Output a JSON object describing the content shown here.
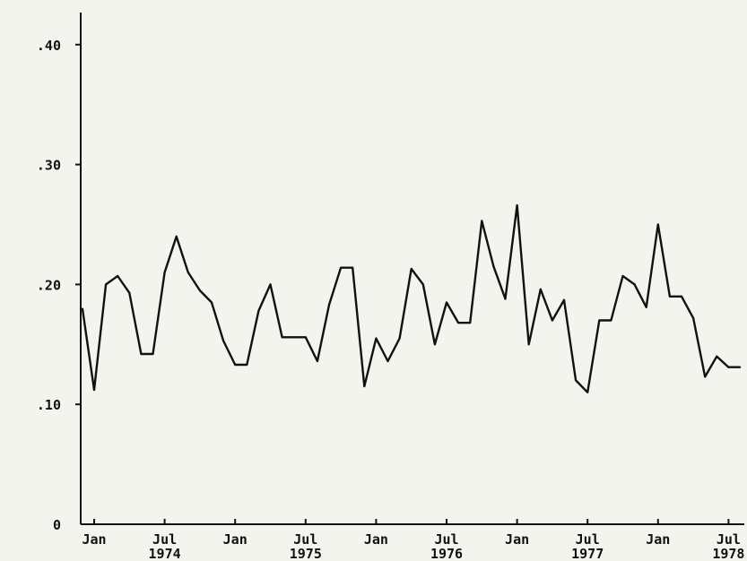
{
  "chart_data": {
    "type": "line",
    "title": "",
    "xlabel": "",
    "ylabel": "",
    "ylim": [
      0,
      0.43
    ],
    "grid": false,
    "legend": "none",
    "y_ticks": [
      {
        "value": 0,
        "label": "0"
      },
      {
        "value": 0.1,
        "label": ".10"
      },
      {
        "value": 0.2,
        "label": ".20"
      },
      {
        "value": 0.3,
        "label": ".30"
      },
      {
        "value": 0.4,
        "label": ".40"
      }
    ],
    "x_ticks": [
      {
        "date": "1974-01",
        "month": "Jan",
        "year": ""
      },
      {
        "date": "1974-07",
        "month": "Jul",
        "year": "1974"
      },
      {
        "date": "1975-01",
        "month": "Jan",
        "year": ""
      },
      {
        "date": "1975-07",
        "month": "Jul",
        "year": "1975"
      },
      {
        "date": "1976-01",
        "month": "Jan",
        "year": ""
      },
      {
        "date": "1976-07",
        "month": "Jul",
        "year": "1976"
      },
      {
        "date": "1977-01",
        "month": "Jan",
        "year": ""
      },
      {
        "date": "1977-07",
        "month": "Jul",
        "year": "1977"
      },
      {
        "date": "1978-01",
        "month": "Jan",
        "year": ""
      },
      {
        "date": "1978-07",
        "month": "Jul",
        "year": "1978"
      }
    ],
    "series": [
      {
        "x": [
          "1973-12",
          "1974-01",
          "1974-02",
          "1974-03",
          "1974-04",
          "1974-05",
          "1974-06",
          "1974-07",
          "1974-08",
          "1974-09",
          "1974-10",
          "1974-11",
          "1974-12",
          "1975-01",
          "1975-02",
          "1975-03",
          "1975-04",
          "1975-05",
          "1975-06",
          "1975-07",
          "1975-08",
          "1975-09",
          "1975-10",
          "1975-11",
          "1975-12",
          "1976-01",
          "1976-02",
          "1976-03",
          "1976-04",
          "1976-05",
          "1976-06",
          "1976-07",
          "1976-08",
          "1976-09",
          "1976-10",
          "1976-11",
          "1976-12",
          "1977-01",
          "1977-02",
          "1977-03",
          "1977-04",
          "1977-05",
          "1977-06",
          "1977-07",
          "1977-08",
          "1977-09",
          "1977-10",
          "1977-11",
          "1977-12",
          "1978-01",
          "1978-02",
          "1978-03",
          "1978-04",
          "1978-05",
          "1978-06",
          "1978-07",
          "1978-08"
        ],
        "values": [
          0.18,
          0.112,
          0.2,
          0.207,
          0.193,
          0.142,
          0.142,
          0.21,
          0.24,
          0.21,
          0.195,
          0.185,
          0.153,
          0.133,
          0.133,
          0.178,
          0.2,
          0.156,
          0.156,
          0.156,
          0.136,
          0.183,
          0.214,
          0.214,
          0.115,
          0.155,
          0.136,
          0.155,
          0.213,
          0.2,
          0.15,
          0.185,
          0.168,
          0.168,
          0.253,
          0.215,
          0.188,
          0.266,
          0.15,
          0.196,
          0.17,
          0.187,
          0.12,
          0.11,
          0.17,
          0.17,
          0.207,
          0.2,
          0.181,
          0.25,
          0.19,
          0.19,
          0.172,
          0.123,
          0.14,
          0.131,
          0.131
        ]
      }
    ]
  }
}
